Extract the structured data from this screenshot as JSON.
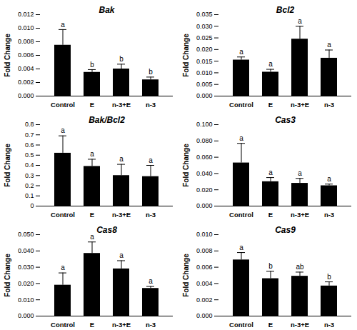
{
  "chart_data": [
    {
      "type": "bar",
      "title": "Bak",
      "ylabel": "Fold Change",
      "color": "#000000",
      "categories": [
        "Control",
        "E",
        "n-3+E",
        "n-3"
      ],
      "values": [
        0.0075,
        0.0035,
        0.004,
        0.0024
      ],
      "errors": [
        0.0023,
        0.0004,
        0.0007,
        0.0004
      ],
      "annotations": [
        "a",
        "b",
        "b",
        "b"
      ],
      "ylim": [
        0,
        0.012
      ],
      "yticks": [
        {
          "value": 0,
          "label": "0.000"
        },
        {
          "value": 0.002,
          "label": "0.002"
        },
        {
          "value": 0.004,
          "label": "0.004"
        },
        {
          "value": 0.006,
          "label": "0.006"
        },
        {
          "value": 0.008,
          "label": "0.008"
        },
        {
          "value": 0.01,
          "label": "0.010"
        },
        {
          "value": 0.012,
          "label": "0.012"
        }
      ]
    },
    {
      "type": "bar",
      "title": "Bcl2",
      "ylabel": "Fold Change",
      "color": "#000000",
      "categories": [
        "Control",
        "E",
        "n-3+E",
        "n-3"
      ],
      "values": [
        0.0155,
        0.0103,
        0.0245,
        0.0163
      ],
      "errors": [
        0.0013,
        0.0012,
        0.0055,
        0.0035
      ],
      "annotations": [
        "a",
        "a",
        "a",
        "a"
      ],
      "ylim": [
        0,
        0.035
      ],
      "yticks": [
        {
          "value": 0,
          "label": "0.000"
        },
        {
          "value": 0.005,
          "label": "0.005"
        },
        {
          "value": 0.01,
          "label": "0.010"
        },
        {
          "value": 0.015,
          "label": "0.015"
        },
        {
          "value": 0.02,
          "label": "0.020"
        },
        {
          "value": 0.025,
          "label": "0.025"
        },
        {
          "value": 0.03,
          "label": "0.030"
        },
        {
          "value": 0.035,
          "label": "0.035"
        }
      ]
    },
    {
      "type": "bar",
      "title": "Bak/Bcl2",
      "ylabel": "Fold Change",
      "color": "#000000",
      "categories": [
        "Control",
        "E",
        "n-3+E",
        "n-3"
      ],
      "values": [
        0.52,
        0.39,
        0.3,
        0.29
      ],
      "errors": [
        0.17,
        0.07,
        0.11,
        0.11
      ],
      "annotations": [
        "a",
        "a",
        "a",
        "a"
      ],
      "ylim": [
        0,
        0.8
      ],
      "yticks": [
        0,
        0.1,
        0.2,
        0.3,
        0.4,
        0.5,
        0.6,
        0.7,
        0.8
      ]
    },
    {
      "type": "bar",
      "title": "Cas3",
      "ylabel": "Fold Change",
      "color": "#000000",
      "categories": [
        "Control",
        "E",
        "n-3+E",
        "n-3"
      ],
      "values": [
        0.053,
        0.03,
        0.028,
        0.025
      ],
      "errors": [
        0.024,
        0.005,
        0.006,
        0.002
      ],
      "annotations": [
        "a",
        "a",
        "a",
        "a"
      ],
      "ylim": [
        0,
        0.1
      ],
      "yticks": [
        {
          "value": 0,
          "label": "0.000"
        },
        {
          "value": 0.02,
          "label": "0.020"
        },
        {
          "value": 0.04,
          "label": "0.040"
        },
        {
          "value": 0.06,
          "label": "0.060"
        },
        {
          "value": 0.08,
          "label": "0.080"
        },
        {
          "value": 0.1,
          "label": "0.100"
        }
      ]
    },
    {
      "type": "bar",
      "title": "Cas8",
      "ylabel": "Fold Change",
      "color": "#000000",
      "categories": [
        "Control",
        "E",
        "n-3+E",
        "n-3"
      ],
      "values": [
        0.019,
        0.0385,
        0.029,
        0.017
      ],
      "errors": [
        0.0075,
        0.007,
        0.005,
        0.0012
      ],
      "annotations": [
        "a",
        "a",
        "a",
        "a"
      ],
      "ylim": [
        0,
        0.05
      ],
      "yticks": [
        {
          "value": 0,
          "label": "0.000"
        },
        {
          "value": 0.01,
          "label": "0.010"
        },
        {
          "value": 0.02,
          "label": "0.020"
        },
        {
          "value": 0.03,
          "label": "0.030"
        },
        {
          "value": 0.04,
          "label": "0.040"
        },
        {
          "value": 0.05,
          "label": "0.050"
        }
      ]
    },
    {
      "type": "bar",
      "title": "Cas9",
      "ylabel": "Fold Change",
      "color": "#000000",
      "categories": [
        "Control",
        "E",
        "n-3+E",
        "n-3"
      ],
      "values": [
        0.0069,
        0.0046,
        0.0049,
        0.0037
      ],
      "errors": [
        0.0009,
        0.0009,
        0.0005,
        0.0005
      ],
      "annotations": [
        "a",
        "b",
        "ab",
        "b"
      ],
      "ylim": [
        0,
        0.01
      ],
      "yticks": [
        {
          "value": 0,
          "label": "0.000"
        },
        {
          "value": 0.002,
          "label": "0.002"
        },
        {
          "value": 0.004,
          "label": "0.004"
        },
        {
          "value": 0.006,
          "label": "0.006"
        },
        {
          "value": 0.008,
          "label": "0.008"
        },
        {
          "value": 0.01,
          "label": "0.010"
        }
      ]
    }
  ]
}
